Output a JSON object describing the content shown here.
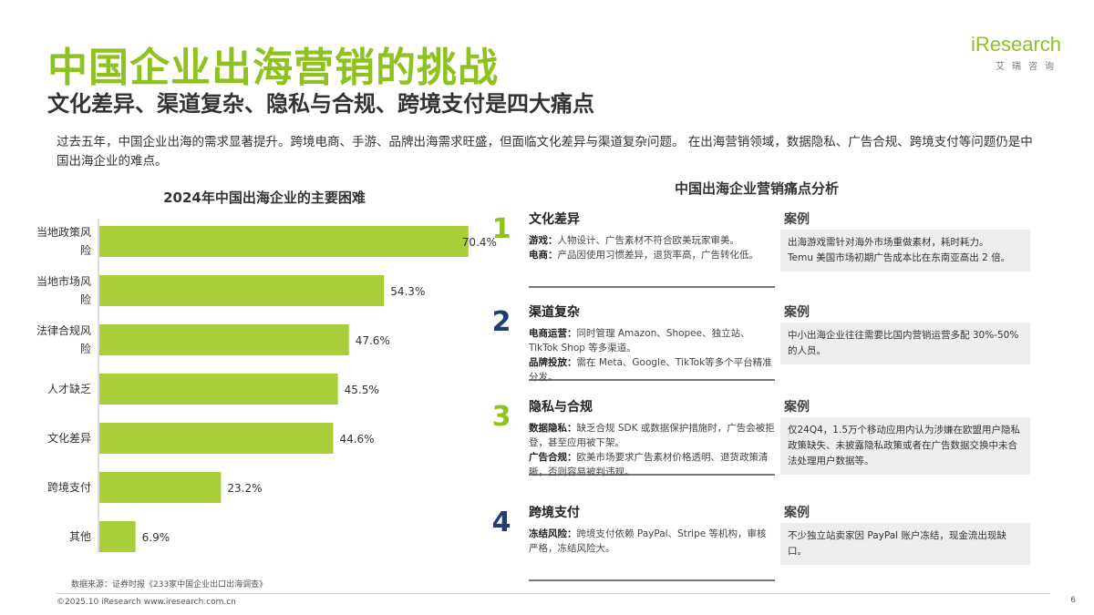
{
  "header": {
    "title": "中国企业出海营销的挑战",
    "subtitle": "文化差异、渠道复杂、隐私与合规、跨境支付是四大痛点"
  },
  "logo": {
    "mark": "iResearch",
    "cn": "艾瑞咨询"
  },
  "intro": "过去五年，中国企业出海的需求显著提升。跨境电商、手游、品牌出海需求旺盛，但面临文化差异与渠道复杂问题。 在出海营销领域，数据隐私、广告合规、跨境支付等问题仍是中国出海企业的难点。",
  "chart_data": {
    "type": "bar",
    "orientation": "horizontal",
    "title": "2024年中国出海企业的主要困难",
    "categories": [
      "当地政策风险",
      "当地市场风险",
      "法律合规风险",
      "人才缺乏",
      "文化差异",
      "跨境支付",
      "其他"
    ],
    "category_lines": [
      [
        "当地政策风",
        "险"
      ],
      [
        "当地市场风",
        "险"
      ],
      [
        "法律合规风",
        "险"
      ],
      [
        "人才缺乏"
      ],
      [
        "文化差异"
      ],
      [
        "跨境支付"
      ],
      [
        "其他"
      ]
    ],
    "values": [
      70.4,
      54.3,
      47.6,
      45.5,
      44.6,
      23.2,
      6.9
    ],
    "value_labels": [
      "70.4%",
      "54.3%",
      "47.6%",
      "45.5%",
      "44.6%",
      "23.2%",
      "6.9%"
    ],
    "xlim": [
      0,
      100
    ],
    "grid": false,
    "color": "#a8cf38"
  },
  "panel": {
    "title": "中国出海企业营销痛点分析",
    "case_label": "案例",
    "rows": [
      {
        "num": "1",
        "num_color": "#8dc21f",
        "heading": "文化差异",
        "lines": [
          {
            "k": "游戏：",
            "v": "人物设计、广告素材不符合欧美玩家审美。"
          },
          {
            "k": "电商：",
            "v": "产品因使用习惯差异，退货率高，广告转化低。"
          }
        ],
        "case": [
          "出海游戏需针对海外市场重做素材，耗时耗力。",
          "Temu 美国市场初期广告成本比在东南亚高出 2 倍。"
        ]
      },
      {
        "num": "2",
        "num_color": "#1f3f72",
        "heading": "渠道复杂",
        "lines": [
          {
            "k": "电商运营：",
            "v": "同时管理 Amazon、Shopee、独立站、TikTok Shop 等多渠道。"
          },
          {
            "k": "品牌投放：",
            "v": "需在 Meta、Google、TikTok等多个平台精准分发。"
          }
        ],
        "case": [
          "中小出海企业往往需要比国内营销运营多配 30%-50% 的人员。"
        ]
      },
      {
        "num": "3",
        "num_color": "#8dc21f",
        "heading": "隐私与合规",
        "lines": [
          {
            "k": "数据隐私：",
            "v": "缺乏合规 SDK 或数据保护措施时，广告会被拒登，甚至应用被下架。"
          },
          {
            "k": "广告合规：",
            "v": "欧美市场要求广告素材价格透明、退货政策清晰，否则容易被判违规。"
          }
        ],
        "case": [
          "仅24Q4，1.5万个移动应用内认为涉嫌在欧盟用户隐私政策缺失、未披露隐私政策或者在广告数据交换中未合法处理用户数据等。"
        ]
      },
      {
        "num": "4",
        "num_color": "#1f3f72",
        "heading": "跨境支付",
        "lines": [
          {
            "k": "冻结风险：",
            "v": "跨境支付依赖 PayPal、Stripe 等机构，审核严格，冻结风险大。"
          }
        ],
        "case": [
          "不少独立站卖家因 PayPal 账户冻结，现金流出现缺口。"
        ]
      }
    ]
  },
  "footer": {
    "source": "数据来源：证券时报《233家中国企业出口出海调查》",
    "copyright": "©2025.10 iResearch www.iresearch.com.cn",
    "page": "6"
  }
}
